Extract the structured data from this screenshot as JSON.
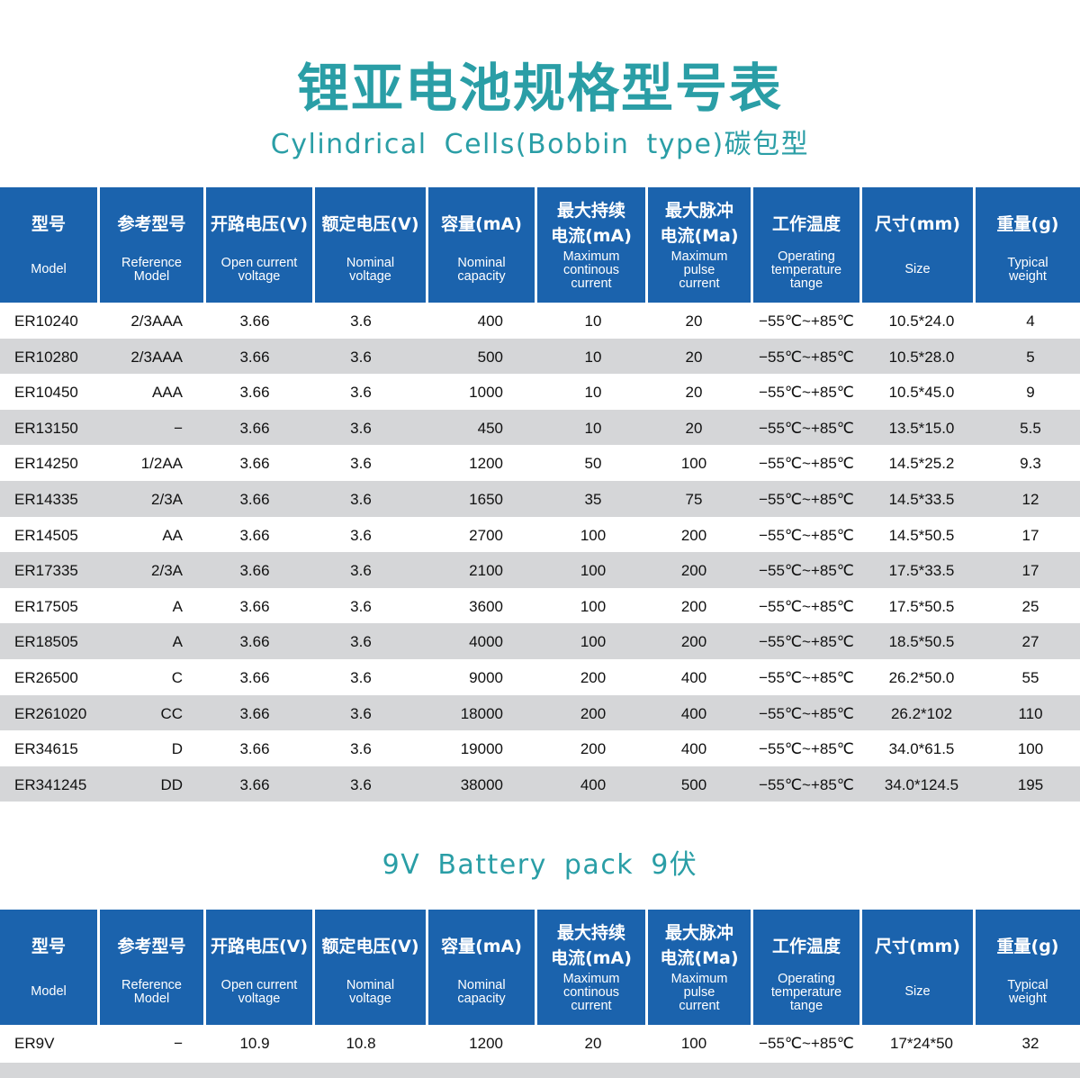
{
  "title": "锂亚电池规格型号表",
  "subtitle": "Cylindrical Cells(Bobbin type)碳包型",
  "section2_title": "9V Battery pack 9伏",
  "columns": [
    {
      "zh": "型号",
      "en": [
        "Model"
      ]
    },
    {
      "zh": "参考型号",
      "en": [
        "Reference",
        "Model"
      ]
    },
    {
      "zh": "开路电压(V)",
      "en": [
        "Open current",
        "voltage"
      ]
    },
    {
      "zh": "额定电压(V)",
      "en": [
        "Nominal",
        "voltage"
      ]
    },
    {
      "zh": "容量(mA)",
      "en": [
        "Nominal",
        "capacity"
      ]
    },
    {
      "zh": [
        "最大持续",
        "电流(mA)"
      ],
      "en": [
        "Maximum",
        "continous",
        "current"
      ]
    },
    {
      "zh": [
        "最大脉冲",
        "电流(Ma)"
      ],
      "en": [
        "Maximum",
        "pulse",
        "current"
      ]
    },
    {
      "zh": "工作温度",
      "en": [
        "Operating",
        "temperature",
        "tange"
      ]
    },
    {
      "zh": "尺寸(mm)",
      "en": [
        "Size"
      ]
    },
    {
      "zh": "重量(g)",
      "en": [
        "Typical",
        "weight"
      ]
    }
  ],
  "rows": [
    [
      "ER10240",
      "2/3AAA",
      "3.66",
      "3.6",
      "400",
      "10",
      "20",
      "−55℃~+85℃",
      "10.5*24.0",
      "4"
    ],
    [
      "ER10280",
      "2/3AAA",
      "3.66",
      "3.6",
      "500",
      "10",
      "20",
      "−55℃~+85℃",
      "10.5*28.0",
      "5"
    ],
    [
      "ER10450",
      "AAA",
      "3.66",
      "3.6",
      "1000",
      "10",
      "20",
      "−55℃~+85℃",
      "10.5*45.0",
      "9"
    ],
    [
      "ER13150",
      "−",
      "3.66",
      "3.6",
      "450",
      "10",
      "20",
      "−55℃~+85℃",
      "13.5*15.0",
      "5.5"
    ],
    [
      "ER14250",
      "1/2AA",
      "3.66",
      "3.6",
      "1200",
      "50",
      "100",
      "−55℃~+85℃",
      "14.5*25.2",
      "9.3"
    ],
    [
      "ER14335",
      "2/3A",
      "3.66",
      "3.6",
      "1650",
      "35",
      "75",
      "−55℃~+85℃",
      "14.5*33.5",
      "12"
    ],
    [
      "ER14505",
      "AA",
      "3.66",
      "3.6",
      "2700",
      "100",
      "200",
      "−55℃~+85℃",
      "14.5*50.5",
      "17"
    ],
    [
      "ER17335",
      "2/3A",
      "3.66",
      "3.6",
      "2100",
      "100",
      "200",
      "−55℃~+85℃",
      "17.5*33.5",
      "17"
    ],
    [
      "ER17505",
      "A",
      "3.66",
      "3.6",
      "3600",
      "100",
      "200",
      "−55℃~+85℃",
      "17.5*50.5",
      "25"
    ],
    [
      "ER18505",
      "A",
      "3.66",
      "3.6",
      "4000",
      "100",
      "200",
      "−55℃~+85℃",
      "18.5*50.5",
      "27"
    ],
    [
      "ER26500",
      "C",
      "3.66",
      "3.6",
      "9000",
      "200",
      "400",
      "−55℃~+85℃",
      "26.2*50.0",
      "55"
    ],
    [
      "ER261020",
      "CC",
      "3.66",
      "3.6",
      "18000",
      "200",
      "400",
      "−55℃~+85℃",
      "26.2*102",
      "110"
    ],
    [
      "ER34615",
      "D",
      "3.66",
      "3.6",
      "19000",
      "200",
      "400",
      "−55℃~+85℃",
      "34.0*61.5",
      "100"
    ],
    [
      "ER341245",
      "DD",
      "3.66",
      "3.6",
      "38000",
      "400",
      "500",
      "−55℃~+85℃",
      "34.0*124.5",
      "195"
    ]
  ],
  "rows2": [
    [
      "ER9V",
      "−",
      "10.9",
      "10.8",
      "1200",
      "20",
      "100",
      "−55℃~+85℃",
      "17*24*50",
      "32"
    ]
  ],
  "colors": {
    "title": "#2a9ea6",
    "header": "#1b63ad",
    "stripe": "#d5d6d8"
  }
}
